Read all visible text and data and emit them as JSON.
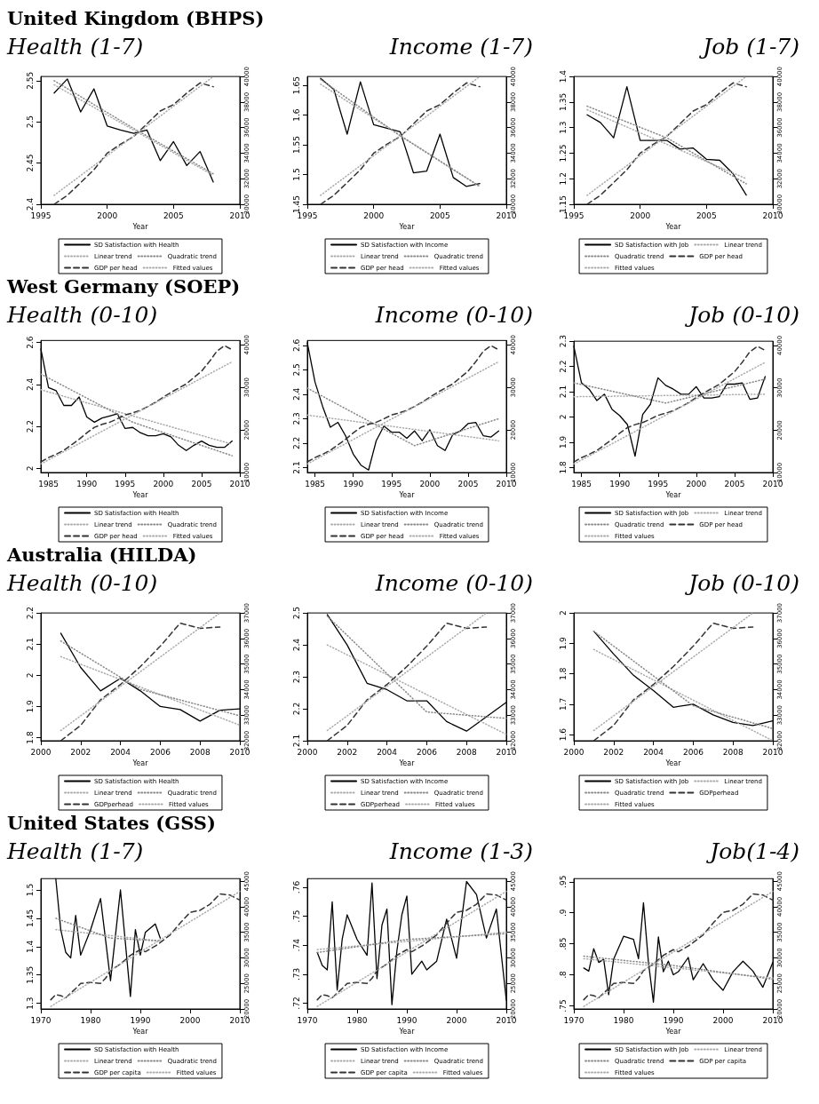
{
  "chart_data": [
    {
      "type": "line",
      "annotations": [
        "United Kingdom (BHPS)"
      ],
      "title": "Health (1-7)",
      "xlabel": "Year",
      "xlim": [
        1995,
        2010
      ],
      "xticks": [
        1995,
        2000,
        2005,
        2010
      ],
      "ylim": [
        2.4,
        2.555
      ],
      "yticks": [
        2.4,
        2.45,
        2.5,
        2.55
      ],
      "y2lim": [
        30000,
        40000
      ],
      "y2ticks": [
        30000,
        32000,
        34000,
        36000,
        38000,
        40000
      ],
      "legend": "bottom",
      "grid": false,
      "marker": "none",
      "series": [
        {
          "name": "SD Satisfaction with Health",
          "color": "#000000",
          "line_style": "solid",
          "x": [
            1996,
            1997,
            1998,
            1999,
            2000,
            2001,
            2002,
            2003,
            2004,
            2005,
            2006,
            2007,
            2008
          ],
          "values": [
            2.535,
            2.552,
            2.512,
            2.54,
            2.495,
            2.49,
            2.486,
            2.49,
            2.453,
            2.476,
            2.447,
            2.464,
            2.427
          ]
        },
        {
          "name": "Linear trend",
          "color": "#aaaaaa",
          "line_style": "dotted",
          "x": [
            1996,
            2008
          ],
          "values": [
            2.545,
            2.435
          ]
        },
        {
          "name": "Quadratic trend",
          "color": "#888888",
          "line_style": "dotted",
          "x": [
            1996,
            2002,
            2008
          ],
          "values": [
            2.55,
            2.492,
            2.437
          ]
        },
        {
          "name": "GDP per head",
          "color": "#333333",
          "line_style": "dashed",
          "axis": "y2",
          "x": [
            1996,
            1997,
            1998,
            1999,
            2000,
            2001,
            2002,
            2003,
            2004,
            2005,
            2006,
            2007,
            2008
          ],
          "values": [
            30000,
            30700,
            31700,
            32700,
            34000,
            34700,
            35300,
            36300,
            37300,
            37800,
            38700,
            39500,
            39200
          ]
        },
        {
          "name": "Fitted values",
          "color": "#aaaaaa",
          "line_style": "dotted",
          "axis": "y2",
          "x": [
            1996,
            2008
          ],
          "values": [
            30700,
            40000
          ]
        }
      ]
    },
    {
      "type": "line",
      "title": "Income (1-7)",
      "xlabel": "Year",
      "xlim": [
        1995,
        2010
      ],
      "xticks": [
        1995,
        2000,
        2005,
        2010
      ],
      "ylim": [
        1.45,
        1.665
      ],
      "yticks": [
        1.45,
        1.5,
        1.55,
        1.6,
        1.65
      ],
      "y2lim": [
        30000,
        40000
      ],
      "y2ticks": [
        30000,
        32000,
        34000,
        36000,
        38000,
        40000
      ],
      "legend": "bottom",
      "grid": false,
      "marker": "none",
      "series": [
        {
          "name": "SD Satisfaction with Income",
          "color": "#000000",
          "line_style": "solid",
          "x": [
            1996,
            1997,
            1998,
            1999,
            2000,
            2001,
            2002,
            2003,
            2004,
            2005,
            2006,
            2007,
            2008
          ],
          "values": [
            1.662,
            1.643,
            1.568,
            1.656,
            1.584,
            1.578,
            1.572,
            1.503,
            1.506,
            1.568,
            1.495,
            1.48,
            1.485
          ]
        },
        {
          "name": "Linear trend",
          "color": "#aaaaaa",
          "line_style": "dotted",
          "x": [
            1996,
            2008
          ],
          "values": [
            1.652,
            1.48
          ]
        },
        {
          "name": "Quadratic trend",
          "color": "#888888",
          "line_style": "dotted",
          "x": [
            1996,
            2002,
            2008
          ],
          "values": [
            1.66,
            1.565,
            1.48
          ]
        },
        {
          "name": "GDP per head",
          "color": "#333333",
          "line_style": "dashed",
          "axis": "y2",
          "x": [
            1996,
            1997,
            1998,
            1999,
            2000,
            2001,
            2002,
            2003,
            2004,
            2005,
            2006,
            2007,
            2008
          ],
          "values": [
            30000,
            30700,
            31700,
            32700,
            34000,
            34700,
            35300,
            36300,
            37300,
            37800,
            38700,
            39500,
            39200
          ]
        },
        {
          "name": "Fitted values",
          "color": "#aaaaaa",
          "line_style": "dotted",
          "axis": "y2",
          "x": [
            1996,
            2008
          ],
          "values": [
            30700,
            40000
          ]
        }
      ]
    },
    {
      "type": "line",
      "title": "Job (1-7)",
      "xlabel": "Year",
      "xlim": [
        1995,
        2010
      ],
      "xticks": [
        1995,
        2000,
        2005,
        2010
      ],
      "ylim": [
        1.15,
        1.4
      ],
      "yticks": [
        1.15,
        1.2,
        1.25,
        1.3,
        1.35,
        1.4
      ],
      "y2lim": [
        30000,
        40000
      ],
      "y2ticks": [
        30000,
        32000,
        34000,
        36000,
        38000,
        40000
      ],
      "legend": "bottom",
      "grid": false,
      "marker": "none",
      "series": [
        {
          "name": "SD Satisfaction with Job",
          "color": "#000000",
          "line_style": "solid",
          "x": [
            1996,
            1997,
            1998,
            1999,
            2000,
            2001,
            2002,
            2003,
            2004,
            2005,
            2006,
            2007,
            2008
          ],
          "values": [
            1.325,
            1.31,
            1.28,
            1.38,
            1.275,
            1.275,
            1.275,
            1.258,
            1.26,
            1.238,
            1.236,
            1.21,
            1.168
          ]
        },
        {
          "name": "Linear trend",
          "color": "#aaaaaa",
          "line_style": "dotted",
          "x": [
            1996,
            2008
          ],
          "values": [
            1.335,
            1.2
          ]
        },
        {
          "name": "Quadratic trend",
          "color": "#888888",
          "line_style": "dotted",
          "x": [
            1996,
            2002,
            2008
          ],
          "values": [
            1.342,
            1.28,
            1.19
          ]
        },
        {
          "name": "GDP per head",
          "color": "#333333",
          "line_style": "dashed",
          "axis": "y2",
          "x": [
            1996,
            1997,
            1998,
            1999,
            2000,
            2001,
            2002,
            2003,
            2004,
            2005,
            2006,
            2007,
            2008
          ],
          "values": [
            30000,
            30700,
            31700,
            32700,
            34000,
            34700,
            35300,
            36300,
            37300,
            37800,
            38700,
            39500,
            39200
          ]
        },
        {
          "name": "Fitted values",
          "color": "#aaaaaa",
          "line_style": "dotted",
          "axis": "y2",
          "x": [
            1996,
            2008
          ],
          "values": [
            30700,
            40000
          ]
        }
      ]
    },
    {
      "type": "line",
      "annotations": [
        "West Germany (SOEP)"
      ],
      "title": "Health (0-10)",
      "xlabel": "Year",
      "xlim": [
        1984,
        2010
      ],
      "xticks": [
        1985,
        1990,
        1995,
        2000,
        2005,
        2010
      ],
      "ylim": [
        1.98,
        2.61
      ],
      "yticks": [
        2,
        2.2,
        2.4,
        2.6
      ],
      "y2lim": [
        10000,
        41000
      ],
      "y2ticks": [
        10000,
        20000,
        30000,
        40000
      ],
      "legend": "bottom",
      "grid": false,
      "marker": "none",
      "series": [
        {
          "name": "SD Satisfaction with Health",
          "color": "#000000",
          "line_style": "solid",
          "x": [
            1984,
            1985,
            1986,
            1987,
            1988,
            1989,
            1990,
            1991,
            1992,
            1993,
            1994,
            1995,
            1996,
            1997,
            1998,
            1999,
            2000,
            2001,
            2002,
            2003,
            2004,
            2005,
            2006,
            2007,
            2008,
            2009
          ],
          "values": [
            2.57,
            2.385,
            2.37,
            2.3,
            2.3,
            2.34,
            2.245,
            2.22,
            2.24,
            2.25,
            2.26,
            2.19,
            2.195,
            2.17,
            2.155,
            2.155,
            2.165,
            2.15,
            2.11,
            2.085,
            2.11,
            2.13,
            2.11,
            2.1,
            2.1,
            2.13
          ]
        },
        {
          "name": "Linear trend",
          "color": "#aaaaaa",
          "line_style": "dotted",
          "x": [
            1984,
            2009
          ],
          "values": [
            2.375,
            2.115
          ]
        },
        {
          "name": "Quadratic trend",
          "color": "#888888",
          "line_style": "dotted",
          "x": [
            1984,
            1996,
            2009
          ],
          "values": [
            2.45,
            2.22,
            2.06
          ]
        },
        {
          "name": "GDP per head",
          "color": "#333333",
          "line_style": "dashed",
          "axis": "y2",
          "x": [
            1984,
            1985,
            1986,
            1987,
            1988,
            1989,
            1990,
            1991,
            1992,
            1993,
            1994,
            1995,
            1996,
            1997,
            1998,
            1999,
            2000,
            2001,
            2002,
            2003,
            2004,
            2005,
            2006,
            2007,
            2008,
            2009
          ],
          "values": [
            12500,
            13500,
            14300,
            15200,
            16500,
            17800,
            19300,
            20600,
            21300,
            21800,
            22600,
            23500,
            24000,
            24600,
            25500,
            26500,
            27700,
            28800,
            29800,
            30800,
            32300,
            33800,
            36000,
            38500,
            39800,
            38800
          ]
        },
        {
          "name": "Fitted values",
          "color": "#aaaaaa",
          "line_style": "dotted",
          "axis": "y2",
          "x": [
            1984,
            2009
          ],
          "values": [
            12000,
            36000
          ]
        }
      ]
    },
    {
      "type": "line",
      "title": "Income (0-10)",
      "xlabel": "Year",
      "xlim": [
        1984,
        2010
      ],
      "xticks": [
        1985,
        1990,
        1995,
        2000,
        2005,
        2010
      ],
      "ylim": [
        2.08,
        2.62
      ],
      "yticks": [
        2.1,
        2.2,
        2.3,
        2.4,
        2.5,
        2.6
      ],
      "y2lim": [
        10000,
        41000
      ],
      "y2ticks": [
        10000,
        20000,
        30000,
        40000
      ],
      "legend": "bottom",
      "grid": false,
      "marker": "none",
      "series": [
        {
          "name": "SD Satisfaction with Income",
          "color": "#000000",
          "line_style": "solid",
          "x": [
            1984,
            1985,
            1986,
            1987,
            1988,
            1989,
            1990,
            1991,
            1992,
            1993,
            1994,
            1995,
            1996,
            1997,
            1998,
            1999,
            2000,
            2001,
            2002,
            2003,
            2004,
            2005,
            2006,
            2007,
            2008,
            2009
          ],
          "values": [
            2.61,
            2.45,
            2.35,
            2.265,
            2.285,
            2.23,
            2.155,
            2.11,
            2.09,
            2.21,
            2.27,
            2.245,
            2.245,
            2.22,
            2.25,
            2.21,
            2.255,
            2.19,
            2.17,
            2.235,
            2.25,
            2.28,
            2.285,
            2.23,
            2.225,
            2.25
          ]
        },
        {
          "name": "Linear trend",
          "color": "#aaaaaa",
          "line_style": "dotted",
          "x": [
            1984,
            2009
          ],
          "values": [
            2.315,
            2.21
          ]
        },
        {
          "name": "Quadratic trend",
          "color": "#888888",
          "line_style": "dotted",
          "x": [
            1984,
            1998,
            2009
          ],
          "values": [
            2.425,
            2.19,
            2.3
          ]
        },
        {
          "name": "GDP per head",
          "color": "#333333",
          "line_style": "dashed",
          "axis": "y2",
          "x": [
            1984,
            1985,
            1986,
            1987,
            1988,
            1989,
            1990,
            1991,
            1992,
            1993,
            1994,
            1995,
            1996,
            1997,
            1998,
            1999,
            2000,
            2001,
            2002,
            2003,
            2004,
            2005,
            2006,
            2007,
            2008,
            2009
          ],
          "values": [
            12500,
            13500,
            14300,
            15200,
            16500,
            17800,
            19300,
            20600,
            21300,
            21800,
            22600,
            23500,
            24000,
            24600,
            25500,
            26500,
            27700,
            28800,
            29800,
            30800,
            32300,
            33800,
            36000,
            38500,
            39800,
            38800
          ]
        },
        {
          "name": "Fitted values",
          "color": "#aaaaaa",
          "line_style": "dotted",
          "axis": "y2",
          "x": [
            1984,
            2009
          ],
          "values": [
            12000,
            36000
          ]
        }
      ]
    },
    {
      "type": "line",
      "title": "Job (0-10)",
      "xlabel": "Year",
      "xlim": [
        1984,
        2010
      ],
      "xticks": [
        1985,
        1990,
        1995,
        2000,
        2005,
        2010
      ],
      "ylim": [
        1.78,
        2.3
      ],
      "yticks": [
        1.8,
        1.9,
        2,
        2.1,
        2.2,
        2.3
      ],
      "y2lim": [
        10000,
        41000
      ],
      "y2ticks": [
        10000,
        20000,
        30000,
        40000
      ],
      "legend": "bottom",
      "grid": false,
      "marker": "none",
      "series": [
        {
          "name": "SD Satisfaction with Job",
          "color": "#000000",
          "line_style": "solid",
          "x": [
            1984,
            1985,
            1986,
            1987,
            1988,
            1989,
            1990,
            1991,
            1992,
            1993,
            1994,
            1995,
            1996,
            1997,
            1998,
            1999,
            2000,
            2001,
            2002,
            2003,
            2004,
            2005,
            2006,
            2007,
            2008,
            2009
          ],
          "values": [
            2.28,
            2.135,
            2.11,
            2.065,
            2.09,
            2.03,
            2.005,
            1.97,
            1.845,
            2.01,
            2.05,
            2.155,
            2.125,
            2.11,
            2.09,
            2.09,
            2.12,
            2.075,
            2.075,
            2.08,
            2.13,
            2.13,
            2.135,
            2.07,
            2.075,
            2.16
          ]
        },
        {
          "name": "Linear trend",
          "color": "#aaaaaa",
          "line_style": "dotted",
          "x": [
            1984,
            2009
          ],
          "values": [
            2.08,
            2.09
          ]
        },
        {
          "name": "Quadratic trend",
          "color": "#888888",
          "line_style": "dotted",
          "x": [
            1984,
            1996,
            2009
          ],
          "values": [
            2.135,
            2.055,
            2.15
          ]
        },
        {
          "name": "GDP per head",
          "color": "#333333",
          "line_style": "dashed",
          "axis": "y2",
          "x": [
            1984,
            1985,
            1986,
            1987,
            1988,
            1989,
            1990,
            1991,
            1992,
            1993,
            1994,
            1995,
            1996,
            1997,
            1998,
            1999,
            2000,
            2001,
            2002,
            2003,
            2004,
            2005,
            2006,
            2007,
            2008,
            2009
          ],
          "values": [
            12500,
            13500,
            14300,
            15200,
            16500,
            17800,
            19300,
            20600,
            21300,
            21800,
            22600,
            23500,
            24000,
            24600,
            25500,
            26500,
            27700,
            28800,
            29800,
            30800,
            32300,
            33800,
            36000,
            38500,
            39800,
            38800
          ]
        },
        {
          "name": "Fitted values",
          "color": "#aaaaaa",
          "line_style": "dotted",
          "axis": "y2",
          "x": [
            1984,
            2009
          ],
          "values": [
            12000,
            36000
          ]
        }
      ]
    },
    {
      "type": "line",
      "annotations": [
        "Australia (HILDA)"
      ],
      "title": "Health (0-10)",
      "xlabel": "Year",
      "xlim": [
        2000,
        2010
      ],
      "xticks": [
        2000,
        2002,
        2004,
        2006,
        2008,
        2010
      ],
      "ylim": [
        1.79,
        2.2
      ],
      "yticks": [
        1.8,
        1.9,
        2,
        2.1,
        2.2
      ],
      "y2lim": [
        32000,
        37000
      ],
      "y2ticks": [
        32000,
        33000,
        34000,
        35000,
        36000,
        37000
      ],
      "legend": "bottom",
      "grid": false,
      "marker": "none",
      "series": [
        {
          "name": "SD Satisfaction with Health",
          "color": "#000000",
          "line_style": "solid",
          "x": [
            2001,
            2002,
            2003,
            2004,
            2005,
            2006,
            2007,
            2008,
            2009,
            2010
          ],
          "values": [
            2.135,
            2.025,
            1.95,
            1.99,
            1.95,
            1.9,
            1.89,
            1.853,
            1.888,
            1.892
          ]
        },
        {
          "name": "Linear trend",
          "color": "#aaaaaa",
          "line_style": "dotted",
          "x": [
            2001,
            2010
          ],
          "values": [
            2.06,
            1.84
          ]
        },
        {
          "name": "Quadratic trend",
          "color": "#888888",
          "line_style": "dotted",
          "x": [
            2001,
            2005,
            2010
          ],
          "values": [
            2.11,
            1.955,
            1.87
          ]
        },
        {
          "name": "GDPperhead",
          "color": "#333333",
          "line_style": "dashed",
          "axis": "y2",
          "x": [
            2001,
            2002,
            2003,
            2004,
            2005,
            2006,
            2007,
            2008,
            2009
          ],
          "values": [
            32000,
            32600,
            33600,
            34200,
            34900,
            35700,
            36600,
            36400,
            36450
          ]
        },
        {
          "name": "Fitted values",
          "color": "#aaaaaa",
          "line_style": "dotted",
          "axis": "y2",
          "x": [
            2001,
            2009
          ],
          "values": [
            32400,
            37000
          ]
        }
      ]
    },
    {
      "type": "line",
      "title": "Income (0-10)",
      "xlabel": "Year",
      "xlim": [
        2000,
        2010
      ],
      "xticks": [
        2000,
        2002,
        2004,
        2006,
        2008,
        2010
      ],
      "ylim": [
        2.1,
        2.5
      ],
      "yticks": [
        2.1,
        2.2,
        2.3,
        2.4,
        2.5
      ],
      "y2lim": [
        32000,
        37000
      ],
      "y2ticks": [
        32000,
        33000,
        34000,
        35000,
        36000,
        37000
      ],
      "legend": "bottom",
      "grid": false,
      "marker": "none",
      "series": [
        {
          "name": "SD Satisfaction with Income",
          "color": "#000000",
          "line_style": "solid",
          "x": [
            2001,
            2002,
            2003,
            2004,
            2005,
            2006,
            2007,
            2008,
            2009,
            2010
          ],
          "values": [
            2.495,
            2.4,
            2.28,
            2.26,
            2.225,
            2.225,
            2.16,
            2.13,
            2.175,
            2.22
          ]
        },
        {
          "name": "Linear trend",
          "color": "#aaaaaa",
          "line_style": "dotted",
          "x": [
            2001,
            2010
          ],
          "values": [
            2.4,
            2.12
          ]
        },
        {
          "name": "Quadratic trend",
          "color": "#888888",
          "line_style": "dotted",
          "x": [
            2001,
            2006,
            2010
          ],
          "values": [
            2.49,
            2.19,
            2.17
          ]
        },
        {
          "name": "GDPperhead",
          "color": "#333333",
          "line_style": "dashed",
          "axis": "y2",
          "x": [
            2001,
            2002,
            2003,
            2004,
            2005,
            2006,
            2007,
            2008,
            2009
          ],
          "values": [
            32000,
            32600,
            33600,
            34200,
            34900,
            35700,
            36600,
            36400,
            36450
          ]
        },
        {
          "name": "Fitted values",
          "color": "#aaaaaa",
          "line_style": "dotted",
          "axis": "y2",
          "x": [
            2001,
            2009
          ],
          "values": [
            32400,
            37000
          ]
        }
      ]
    },
    {
      "type": "line",
      "title": "Job (0-10)",
      "xlabel": "Year",
      "xlim": [
        2000,
        2010
      ],
      "xticks": [
        2000,
        2002,
        2004,
        2006,
        2008,
        2010
      ],
      "ylim": [
        1.58,
        2.0
      ],
      "yticks": [
        1.6,
        1.7,
        1.8,
        1.9,
        2
      ],
      "y2lim": [
        32000,
        37000
      ],
      "y2ticks": [
        32000,
        33000,
        34000,
        35000,
        36000,
        37000
      ],
      "legend": "bottom",
      "grid": false,
      "marker": "none",
      "series": [
        {
          "name": "SD Satisfaction with Job",
          "color": "#000000",
          "line_style": "solid",
          "x": [
            2001,
            2002,
            2003,
            2004,
            2005,
            2006,
            2007,
            2008,
            2009,
            2010
          ],
          "values": [
            1.94,
            1.865,
            1.795,
            1.745,
            1.69,
            1.7,
            1.665,
            1.64,
            1.63,
            1.645
          ]
        },
        {
          "name": "Linear trend",
          "color": "#aaaaaa",
          "line_style": "dotted",
          "x": [
            2001,
            2010
          ],
          "values": [
            1.88,
            1.58
          ]
        },
        {
          "name": "Quadratic trend",
          "color": "#888888",
          "line_style": "dotted",
          "x": [
            2001,
            2006,
            2010
          ],
          "values": [
            1.94,
            1.695,
            1.62
          ]
        },
        {
          "name": "GDPperhead",
          "color": "#333333",
          "line_style": "dashed",
          "axis": "y2",
          "x": [
            2001,
            2002,
            2003,
            2004,
            2005,
            2006,
            2007,
            2008,
            2009
          ],
          "values": [
            32000,
            32600,
            33600,
            34200,
            34900,
            35700,
            36600,
            36400,
            36450
          ]
        },
        {
          "name": "Fitted values",
          "color": "#aaaaaa",
          "line_style": "dotted",
          "axis": "y2",
          "x": [
            2001,
            2009
          ],
          "values": [
            32400,
            37000
          ]
        }
      ]
    },
    {
      "type": "line",
      "annotations": [
        "United States (GSS)"
      ],
      "title": "Health (1-7)",
      "xlabel": "Year",
      "xlim": [
        1970,
        2010
      ],
      "xticks": [
        1970,
        1980,
        1990,
        2000,
        2010
      ],
      "ylim": [
        1.29,
        1.52
      ],
      "yticks": [
        1.3,
        1.35,
        1.4,
        1.45,
        1.5
      ],
      "y2lim": [
        20000,
        45500
      ],
      "y2ticks": [
        20000,
        25000,
        30000,
        35000,
        40000,
        45000
      ],
      "legend": "bottom",
      "grid": false,
      "marker": "none",
      "series": [
        {
          "name": "SD Satisfaction with Health",
          "color": "#000000",
          "line_style": "solid",
          "x": [
            1973,
            1974,
            1975,
            1976,
            1977,
            1978,
            1980,
            1982,
            1984,
            1986,
            1988,
            1989,
            1990,
            1991,
            1993,
            1994
          ],
          "values": [
            1.52,
            1.43,
            1.39,
            1.38,
            1.455,
            1.385,
            1.43,
            1.485,
            1.34,
            1.5,
            1.312,
            1.43,
            1.385,
            1.425,
            1.44,
            1.415
          ]
        },
        {
          "name": "Linear trend",
          "color": "#aaaaaa",
          "line_style": "dotted",
          "x": [
            1973,
            1994
          ],
          "values": [
            1.43,
            1.41
          ]
        },
        {
          "name": "Quadratic trend",
          "color": "#888888",
          "line_style": "dotted",
          "x": [
            1973,
            1984,
            1994
          ],
          "values": [
            1.45,
            1.415,
            1.41
          ]
        },
        {
          "name": "GDP per capita",
          "color": "#333333",
          "line_style": "dashed",
          "axis": "y2",
          "x": [
            1972,
            1973,
            1974,
            1975,
            1976,
            1977,
            1978,
            1980,
            1982,
            1983,
            1984,
            1986,
            1988,
            1990,
            1991,
            1993,
            1994,
            1996,
            1998,
            2000,
            2002,
            2004,
            2006,
            2008,
            2010
          ],
          "values": [
            21800,
            22800,
            22600,
            22200,
            23100,
            24000,
            25000,
            25200,
            25000,
            26000,
            27500,
            28800,
            30500,
            31600,
            31200,
            32300,
            33000,
            34500,
            36800,
            38900,
            39300,
            40500,
            42500,
            42300,
            41300
          ]
        },
        {
          "name": "Fitted values",
          "color": "#aaaaaa",
          "line_style": "dotted",
          "axis": "y2",
          "x": [
            1972,
            2010
          ],
          "values": [
            20500,
            43000
          ]
        }
      ]
    },
    {
      "type": "line",
      "title": "Income (1-3)",
      "xlabel": "Year",
      "xlim": [
        1970,
        2010
      ],
      "xticks": [
        1970,
        1980,
        1990,
        2000,
        2010
      ],
      "ylim": [
        0.718,
        0.763
      ],
      "yticks": [
        {
          "value": 0.72,
          "label": ".72"
        },
        {
          "value": 0.73,
          "label": ".73"
        },
        {
          "value": 0.74,
          "label": ".74"
        },
        {
          "value": 0.75,
          "label": ".75"
        },
        {
          "value": 0.76,
          "label": ".76"
        }
      ],
      "y2lim": [
        20000,
        45500
      ],
      "y2ticks": [
        20000,
        25000,
        30000,
        35000,
        40000,
        45000
      ],
      "legend": "bottom",
      "grid": false,
      "marker": "none",
      "series": [
        {
          "name": "SD Satisfaction with Income",
          "color": "#000000",
          "line_style": "solid",
          "x": [
            1972,
            1973,
            1974,
            1975,
            1976,
            1977,
            1978,
            1980,
            1982,
            1983,
            1984,
            1985,
            1986,
            1987,
            1988,
            1989,
            1990,
            1991,
            1993,
            1994,
            1996,
            1998,
            2000,
            2002,
            2004,
            2006,
            2008,
            2010
          ],
          "values": [
            0.7375,
            0.733,
            0.7315,
            0.755,
            0.7245,
            0.742,
            0.7505,
            0.742,
            0.7365,
            0.7615,
            0.7285,
            0.747,
            0.7525,
            0.7195,
            0.738,
            0.7505,
            0.757,
            0.73,
            0.7345,
            0.7315,
            0.7345,
            0.749,
            0.7355,
            0.762,
            0.7575,
            0.7425,
            0.7525,
            0.721
          ]
        },
        {
          "name": "Linear trend",
          "color": "#aaaaaa",
          "line_style": "dotted",
          "x": [
            1972,
            2010
          ],
          "values": [
            0.7385,
            0.7445
          ]
        },
        {
          "name": "Quadratic trend",
          "color": "#888888",
          "line_style": "dotted",
          "x": [
            1972,
            1990,
            2010
          ],
          "values": [
            0.7375,
            0.742,
            0.744
          ]
        },
        {
          "name": "GDP per capita",
          "color": "#333333",
          "line_style": "dashed",
          "axis": "y2",
          "x": [
            1972,
            1973,
            1974,
            1975,
            1976,
            1977,
            1978,
            1980,
            1982,
            1983,
            1984,
            1986,
            1988,
            1990,
            1991,
            1993,
            1994,
            1996,
            1998,
            2000,
            2002,
            2004,
            2006,
            2008,
            2010
          ],
          "values": [
            21800,
            22800,
            22600,
            22200,
            23100,
            24000,
            25000,
            25200,
            25000,
            26000,
            27500,
            28800,
            30500,
            31600,
            31200,
            32300,
            33000,
            34500,
            36800,
            38900,
            39300,
            40500,
            42500,
            42300,
            41300
          ]
        },
        {
          "name": "Fitted values",
          "color": "#aaaaaa",
          "line_style": "dotted",
          "axis": "y2",
          "x": [
            1972,
            2010
          ],
          "values": [
            20500,
            43000
          ]
        }
      ]
    },
    {
      "type": "line",
      "title": "Job(1-4)",
      "xlabel": "Year",
      "xlim": [
        1970,
        2010
      ],
      "xticks": [
        1970,
        1980,
        1990,
        2000,
        2010
      ],
      "ylim": [
        0.745,
        0.955
      ],
      "yticks": [
        {
          "value": 0.75,
          "label": ".75"
        },
        {
          "value": 0.8,
          "label": ".8"
        },
        {
          "value": 0.85,
          "label": ".85"
        },
        {
          "value": 0.9,
          "label": ".9"
        },
        {
          "value": 0.95,
          "label": ".95"
        }
      ],
      "y2lim": [
        20000,
        45500
      ],
      "y2ticks": [
        20000,
        25000,
        30000,
        35000,
        40000,
        45000
      ],
      "legend": "bottom",
      "grid": false,
      "marker": "none",
      "series": [
        {
          "name": "SD Satisfaction with Job",
          "color": "#000000",
          "line_style": "solid",
          "x": [
            1972,
            1973,
            1974,
            1975,
            1976,
            1977,
            1978,
            1980,
            1982,
            1983,
            1984,
            1985,
            1986,
            1987,
            1988,
            1989,
            1990,
            1991,
            1993,
            1994,
            1996,
            1998,
            2000,
            2002,
            2004,
            2006,
            2008,
            2010
          ],
          "values": [
            0.811,
            0.806,
            0.842,
            0.82,
            0.825,
            0.768,
            0.825,
            0.862,
            0.857,
            0.826,
            0.916,
            0.82,
            0.756,
            0.861,
            0.805,
            0.822,
            0.8,
            0.805,
            0.828,
            0.792,
            0.818,
            0.792,
            0.775,
            0.805,
            0.822,
            0.806,
            0.78,
            0.82
          ]
        },
        {
          "name": "Linear trend",
          "color": "#aaaaaa",
          "line_style": "dotted",
          "x": [
            1972,
            2010
          ],
          "values": [
            0.826,
            0.795
          ]
        },
        {
          "name": "Quadratic trend",
          "color": "#888888",
          "line_style": "dotted",
          "x": [
            1972,
            1990,
            2010
          ],
          "values": [
            0.83,
            0.815,
            0.793
          ]
        },
        {
          "name": "GDP per capita",
          "color": "#333333",
          "line_style": "dashed",
          "axis": "y2",
          "x": [
            1972,
            1973,
            1974,
            1975,
            1976,
            1977,
            1978,
            1980,
            1982,
            1983,
            1984,
            1986,
            1988,
            1990,
            1991,
            1993,
            1994,
            1996,
            1998,
            2000,
            2002,
            2004,
            2006,
            2008,
            2010
          ],
          "values": [
            21800,
            22800,
            22600,
            22200,
            23100,
            24000,
            25000,
            25200,
            25000,
            26000,
            27500,
            28800,
            30500,
            31600,
            31200,
            32300,
            33000,
            34500,
            36800,
            38900,
            39300,
            40500,
            42500,
            42300,
            41300
          ]
        },
        {
          "name": "Fitted values",
          "color": "#aaaaaa",
          "line_style": "dotted",
          "axis": "y2",
          "x": [
            1972,
            2010
          ],
          "values": [
            20500,
            43000
          ]
        }
      ]
    }
  ]
}
